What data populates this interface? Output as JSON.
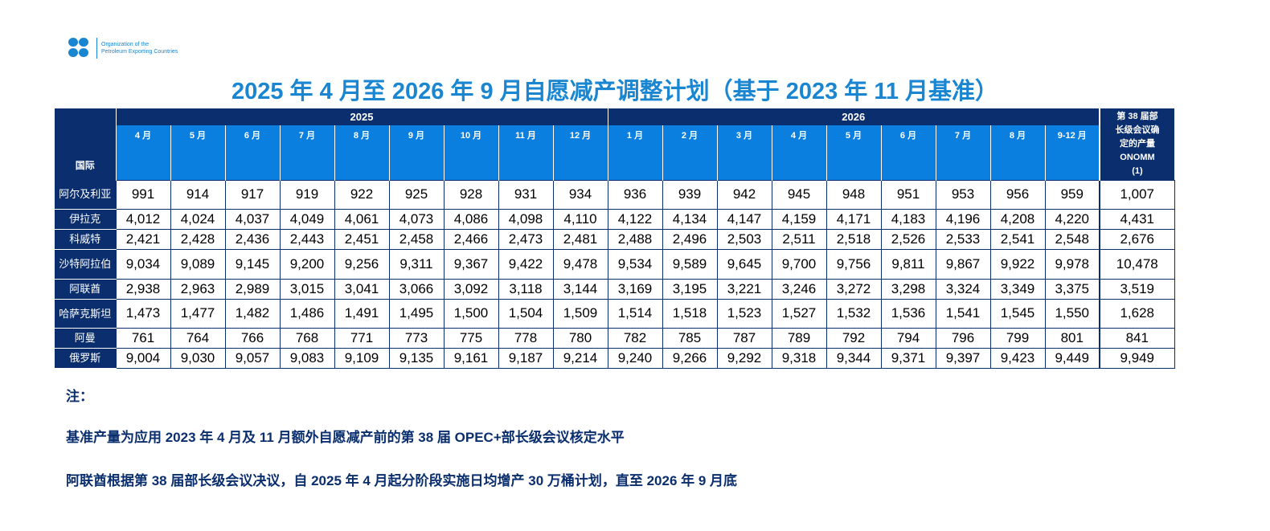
{
  "logo": {
    "line1": "Organization of the",
    "line2": "Petroleum Exporting Countries",
    "icon": "opec-logo-icon",
    "color": "#1a86d1"
  },
  "title": "2025 年 4 月至 2026 年 9 月自愿减产调整计划（基于 2023 年 11 月基准）",
  "table": {
    "corner_label": "国际",
    "years": [
      {
        "label": "2025",
        "span": 9
      },
      {
        "label": "2026",
        "span": 9
      }
    ],
    "ref_header": [
      "第 38 届部",
      "长级会议确",
      "定的产量",
      "ONOMM",
      "(1)"
    ],
    "months": [
      "4 月",
      "5 月",
      "6 月",
      "7 月",
      "8 月",
      "9 月",
      "10 月",
      "11 月",
      "12 月",
      "1 月",
      "2 月",
      "3 月",
      "4 月",
      "5 月",
      "6 月",
      "7 月",
      "8 月",
      "9-12 月"
    ],
    "rows": [
      {
        "country": "阿尔及利亚",
        "values": [
          "991",
          "914",
          "917",
          "919",
          "922",
          "925",
          "928",
          "931",
          "934",
          "936",
          "939",
          "942",
          "945",
          "948",
          "951",
          "953",
          "956",
          "959"
        ],
        "ref": "1,007"
      },
      {
        "country": "伊拉克",
        "values": [
          "4,012",
          "4,024",
          "4,037",
          "4,049",
          "4,061",
          "4,073",
          "4,086",
          "4,098",
          "4,110",
          "4,122",
          "4,134",
          "4,147",
          "4,159",
          "4,171",
          "4,183",
          "4,196",
          "4,208",
          "4,220"
        ],
        "ref": "4,431"
      },
      {
        "country": "科威特",
        "values": [
          "2,421",
          "2,428",
          "2,436",
          "2,443",
          "2,451",
          "2,458",
          "2,466",
          "2,473",
          "2,481",
          "2,488",
          "2,496",
          "2,503",
          "2,511",
          "2,518",
          "2,526",
          "2,533",
          "2,541",
          "2,548"
        ],
        "ref": "2,676"
      },
      {
        "country": "沙特阿拉伯",
        "values": [
          "9,034",
          "9,089",
          "9,145",
          "9,200",
          "9,256",
          "9,311",
          "9,367",
          "9,422",
          "9,478",
          "9,534",
          "9,589",
          "9,645",
          "9,700",
          "9,756",
          "9,811",
          "9,867",
          "9,922",
          "9,978"
        ],
        "ref": "10,478"
      },
      {
        "country": "阿联酋",
        "values": [
          "2,938",
          "2,963",
          "2,989",
          "3,015",
          "3,041",
          "3,066",
          "3,092",
          "3,118",
          "3,144",
          "3,169",
          "3,195",
          "3,221",
          "3,246",
          "3,272",
          "3,298",
          "3,324",
          "3,349",
          "3,375"
        ],
        "ref": "3,519"
      },
      {
        "country": "哈萨克斯坦",
        "values": [
          "1,473",
          "1,477",
          "1,482",
          "1,486",
          "1,491",
          "1,495",
          "1,500",
          "1,504",
          "1,509",
          "1,514",
          "1,518",
          "1,523",
          "1,527",
          "1,532",
          "1,536",
          "1,541",
          "1,545",
          "1,550"
        ],
        "ref": "1,628"
      },
      {
        "country": "阿曼",
        "values": [
          "761",
          "764",
          "766",
          "768",
          "771",
          "773",
          "775",
          "778",
          "780",
          "782",
          "785",
          "787",
          "789",
          "792",
          "794",
          "796",
          "799",
          "801"
        ],
        "ref": "841"
      },
      {
        "country": "俄罗斯",
        "values": [
          "9,004",
          "9,030",
          "9,057",
          "9,083",
          "9,109",
          "9,135",
          "9,161",
          "9,187",
          "9,214",
          "9,240",
          "9,266",
          "9,292",
          "9,318",
          "9,344",
          "9,371",
          "9,397",
          "9,423",
          "9,449"
        ],
        "ref": "9,949"
      }
    ]
  },
  "notes": {
    "heading": "注：",
    "lines": [
      "基准产量为应用 2023 年 4 月及 11 月额外自愿减产前的第 38 届 OPEC+部长级会议核定水平",
      "阿联酋根据第 38 届部长级会议决议，自 2025 年 4 月起分阶段实施日均增产 30 万桶计划，直至 2026 年 9 月底"
    ]
  },
  "colors": {
    "header_dark": "#0a2e6e",
    "header_blue": "#0a7fe0",
    "title_blue": "#1a86d1"
  }
}
